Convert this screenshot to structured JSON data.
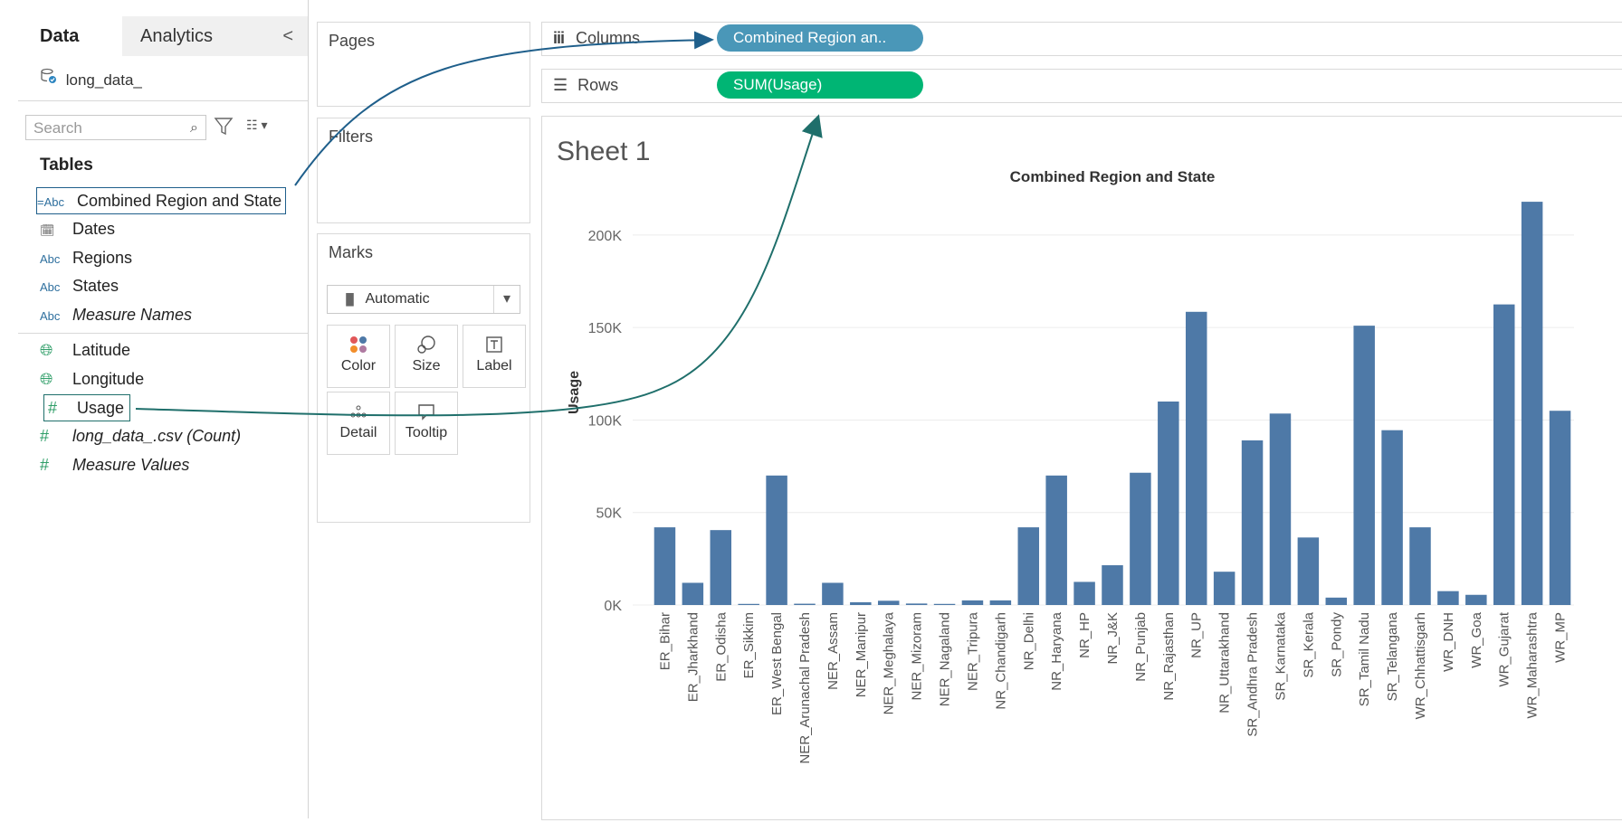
{
  "left_pane": {
    "tabs": [
      "Data",
      "Analytics"
    ],
    "collapse_glyph": "<",
    "datasource": "long_data_",
    "search_placeholder": "Search",
    "tables_heading": "Tables",
    "fields": [
      {
        "icon": "=Abc",
        "label": "Combined Region and State",
        "italic": false
      },
      {
        "icon": "date-icon",
        "label": "Dates",
        "italic": false
      },
      {
        "icon": "Abc",
        "label": "Regions",
        "italic": false
      },
      {
        "icon": "Abc",
        "label": "States",
        "italic": false
      },
      {
        "icon": "Abc",
        "label": "Measure Names",
        "italic": true
      },
      {
        "icon": "globe-icon",
        "label": "Latitude",
        "italic": false
      },
      {
        "icon": "globe-icon",
        "label": "Longitude",
        "italic": false
      },
      {
        "icon": "#",
        "label": "Usage",
        "italic": false
      },
      {
        "icon": "#",
        "label": "long_data_.csv (Count)",
        "italic": true
      },
      {
        "icon": "#",
        "label": "Measure Values",
        "italic": true
      }
    ]
  },
  "cards": {
    "pages": "Pages",
    "filters": "Filters",
    "marks": "Marks",
    "mark_type": "Automatic",
    "mark_buttons": [
      "Color",
      "Size",
      "Label",
      "Detail",
      "Tooltip"
    ]
  },
  "shelves": {
    "columns_label": "Columns",
    "rows_label": "Rows",
    "columns_pill": "Combined Region an..",
    "rows_pill": "SUM(Usage)"
  },
  "colors": {
    "bar": "#4e79a7",
    "columns_pill": "#4a97b8",
    "rows_pill": "#00b574",
    "annotation_arrow": "#1f5f8b"
  },
  "sheet_title": "Sheet 1",
  "chart_data": {
    "type": "bar",
    "title": "Combined Region and State",
    "ylabel": "Usage",
    "ylim": [
      0,
      220000
    ],
    "yticks": [
      "0K",
      "50K",
      "100K",
      "150K",
      "200K"
    ],
    "ytick_values": [
      0,
      50000,
      100000,
      150000,
      200000
    ],
    "categories": [
      "ER_Bihar",
      "ER_Jharkhand",
      "ER_Odisha",
      "ER_Sikkim",
      "ER_West Bengal",
      "NER_Arunachal Pradesh",
      "NER_Assam",
      "NER_Manipur",
      "NER_Meghalaya",
      "NER_Mizoram",
      "NER_Nagaland",
      "NER_Tripura",
      "NR_Chandigarh",
      "NR_Delhi",
      "NR_Haryana",
      "NR_HP",
      "NR_J&K",
      "NR_Punjab",
      "NR_Rajasthan",
      "NR_UP",
      "NR_Uttarakhand",
      "SR_Andhra Pradesh",
      "SR_Karnataka",
      "SR_Kerala",
      "SR_Pondy",
      "SR_Tamil Nadu",
      "SR_Telangana",
      "WR_Chhattisgarh",
      "WR_DNH",
      "WR_Goa",
      "WR_Gujarat",
      "WR_Maharashtra",
      "WR_MP"
    ],
    "values": [
      42000,
      12000,
      40500,
      600,
      70000,
      700,
      12000,
      1500,
      2300,
      800,
      600,
      2500,
      2500,
      42000,
      70000,
      12500,
      21500,
      71500,
      110000,
      158500,
      18000,
      89000,
      103500,
      36500,
      4000,
      151000,
      94500,
      42000,
      7500,
      5500,
      162500,
      218000,
      105000
    ]
  }
}
